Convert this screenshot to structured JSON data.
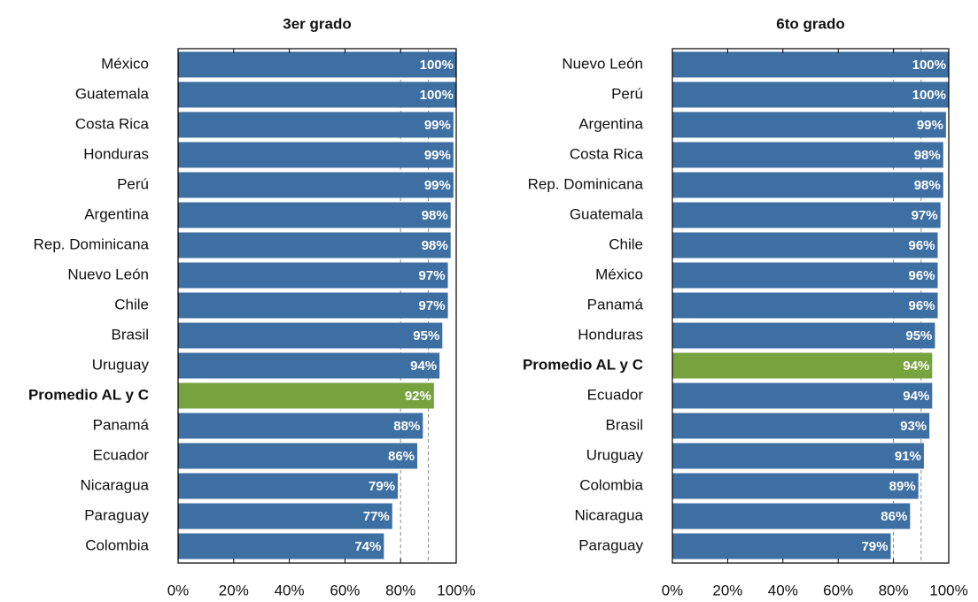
{
  "chart_data": [
    {
      "type": "hbar",
      "title": "3er grado",
      "categories": [
        "México",
        "Guatemala",
        "Costa Rica",
        "Honduras",
        "Perú",
        "Argentina",
        "Rep. Dominicana",
        "Nuevo León",
        "Chile",
        "Brasil",
        "Uruguay",
        "Promedio AL y C",
        "Panamá",
        "Ecuador",
        "Nicaragua",
        "Paraguay",
        "Colombia"
      ],
      "values": [
        100,
        100,
        99,
        99,
        99,
        98,
        98,
        97,
        97,
        95,
        94,
        92,
        88,
        86,
        79,
        77,
        74
      ],
      "value_labels": [
        "100%",
        "100%",
        "99%",
        "99%",
        "99%",
        "98%",
        "98%",
        "97%",
        "97%",
        "95%",
        "94%",
        "92%",
        "88%",
        "86%",
        "79%",
        "77%",
        "74%"
      ],
      "colors": [
        "#3e6fa3",
        "#3e6fa3",
        "#3e6fa3",
        "#3e6fa3",
        "#3e6fa3",
        "#3e6fa3",
        "#3e6fa3",
        "#3e6fa3",
        "#3e6fa3",
        "#3e6fa3",
        "#3e6fa3",
        "#77a33e",
        "#3e6fa3",
        "#3e6fa3",
        "#3e6fa3",
        "#3e6fa3",
        "#3e6fa3"
      ],
      "xlim": [
        0,
        100
      ],
      "xticks": [
        {
          "value": 0,
          "label": "0%"
        },
        {
          "value": 20,
          "label": "20%"
        },
        {
          "value": 40,
          "label": "40%"
        },
        {
          "value": 60,
          "label": "60%"
        },
        {
          "value": 80,
          "label": "80%"
        },
        {
          "value": 100,
          "label": "100%"
        }
      ],
      "reference_lines": [
        80,
        90
      ]
    },
    {
      "type": "hbar",
      "title": "6to grado",
      "categories": [
        "Nuevo León",
        "Perú",
        "Argentina",
        "Costa Rica",
        "Rep. Dominicana",
        "Guatemala",
        "Chile",
        "México",
        "Panamá",
        "Honduras",
        "Promedio AL y C",
        "Ecuador",
        "Brasil",
        "Uruguay",
        "Colombia",
        "Nicaragua",
        "Paraguay"
      ],
      "values": [
        100,
        100,
        99,
        98,
        98,
        97,
        96,
        96,
        96,
        95,
        94,
        94,
        93,
        91,
        89,
        86,
        79
      ],
      "value_labels": [
        "100%",
        "100%",
        "99%",
        "98%",
        "98%",
        "97%",
        "96%",
        "96%",
        "96%",
        "95%",
        "94%",
        "94%",
        "93%",
        "91%",
        "89%",
        "86%",
        "79%"
      ],
      "colors": [
        "#3e6fa3",
        "#3e6fa3",
        "#3e6fa3",
        "#3e6fa3",
        "#3e6fa3",
        "#3e6fa3",
        "#3e6fa3",
        "#3e6fa3",
        "#3e6fa3",
        "#3e6fa3",
        "#77a33e",
        "#3e6fa3",
        "#3e6fa3",
        "#3e6fa3",
        "#3e6fa3",
        "#3e6fa3",
        "#3e6fa3"
      ],
      "xlim": [
        0,
        100
      ],
      "xticks": [
        {
          "value": 0,
          "label": "0%"
        },
        {
          "value": 20,
          "label": "20%"
        },
        {
          "value": 40,
          "label": "40%"
        },
        {
          "value": 60,
          "label": "60%"
        },
        {
          "value": 80,
          "label": "80%"
        },
        {
          "value": 100,
          "label": "100%"
        }
      ],
      "reference_lines": [
        80,
        90
      ]
    }
  ]
}
